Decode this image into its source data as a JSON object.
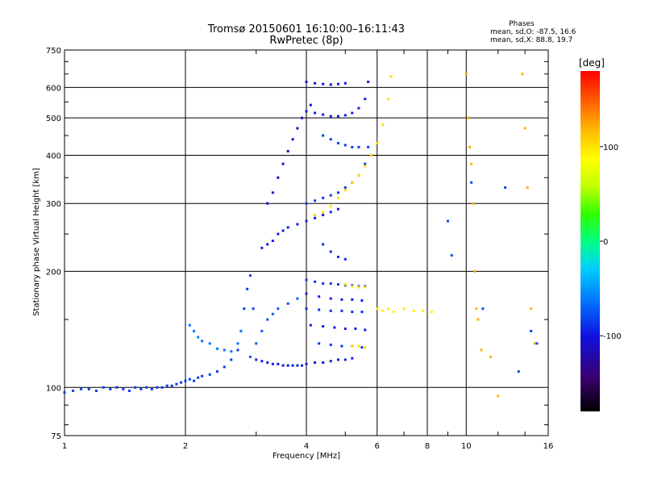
{
  "chart_data": {
    "type": "scatter",
    "title": "Tromsø 20150601 16:10:00–16:11:43",
    "subtitle": "RwPretec (8p)",
    "xlabel": "Frequency [MHz]",
    "ylabel": "Stationary phase Virtual Height [km]",
    "xscale": "log",
    "yscale": "log",
    "xlim": [
      1,
      16
    ],
    "ylim": [
      75,
      750
    ],
    "x_ticks": [
      "1",
      "2",
      "4",
      "6",
      "8",
      "10",
      "16"
    ],
    "y_ticks": [
      "75",
      "100",
      "200",
      "300",
      "400",
      "500",
      "600",
      "750"
    ],
    "grid": true,
    "phases_box": {
      "heading": "Phases",
      "line_o": "mean, sd,O: -87.5, 16.6",
      "line_x": "mean, sd,X:  88.8, 19.7"
    },
    "colorbar": {
      "label": "[deg]",
      "ticks": [
        "100",
        "0",
        "-100"
      ],
      "range": [
        -180,
        180
      ],
      "colors": [
        "#000000",
        "#3a0070",
        "#1010e0",
        "#0070ff",
        "#00d0ff",
        "#00ff80",
        "#30ff00",
        "#c0ff00",
        "#ffff00",
        "#ffc000",
        "#ff6000",
        "#ff0000"
      ]
    },
    "series": [
      {
        "points": [
          [
            1.0,
            97
          ],
          [
            1.05,
            98
          ],
          [
            1.1,
            99
          ],
          [
            1.15,
            99
          ],
          [
            1.2,
            98
          ],
          [
            1.25,
            100
          ],
          [
            1.3,
            99
          ],
          [
            1.35,
            100
          ],
          [
            1.4,
            99
          ],
          [
            1.45,
            98
          ],
          [
            1.5,
            100
          ],
          [
            1.55,
            99
          ],
          [
            1.6,
            100
          ],
          [
            1.65,
            99
          ],
          [
            1.7,
            100
          ],
          [
            1.75,
            100
          ],
          [
            1.8,
            101
          ],
          [
            1.85,
            101
          ],
          [
            1.9,
            102
          ],
          [
            1.95,
            103
          ],
          [
            2.0,
            104
          ],
          [
            2.05,
            105
          ],
          [
            2.1,
            104
          ],
          [
            2.15,
            106
          ],
          [
            2.2,
            107
          ],
          [
            2.3,
            108
          ],
          [
            2.4,
            110
          ],
          [
            2.5,
            113
          ],
          [
            2.6,
            118
          ],
          [
            2.7,
            125
          ],
          [
            2.8,
            160
          ],
          [
            2.85,
            180
          ],
          [
            2.9,
            195
          ],
          [
            2.95,
            160
          ]
        ],
        "phase": -100
      },
      {
        "points": [
          [
            2.05,
            145
          ],
          [
            2.1,
            140
          ],
          [
            2.15,
            135
          ],
          [
            2.2,
            132
          ],
          [
            2.3,
            130
          ],
          [
            2.4,
            126
          ],
          [
            2.5,
            125
          ],
          [
            2.6,
            124
          ],
          [
            2.7,
            130
          ],
          [
            2.75,
            140
          ]
        ],
        "phase": -80
      },
      {
        "points": [
          [
            3.0,
            118
          ],
          [
            3.1,
            117
          ],
          [
            3.2,
            116
          ],
          [
            3.3,
            115
          ],
          [
            3.4,
            115
          ],
          [
            3.5,
            114
          ],
          [
            3.6,
            114
          ],
          [
            3.7,
            114
          ],
          [
            3.8,
            114
          ],
          [
            3.9,
            114
          ],
          [
            4.0,
            115
          ],
          [
            4.2,
            116
          ],
          [
            4.4,
            116
          ],
          [
            4.6,
            117
          ],
          [
            4.8,
            118
          ],
          [
            5.0,
            118
          ],
          [
            5.2,
            119
          ]
        ],
        "phase": -110
      },
      {
        "points": [
          [
            2.9,
            120
          ],
          [
            3.0,
            130
          ],
          [
            3.1,
            140
          ],
          [
            3.2,
            150
          ],
          [
            3.3,
            155
          ],
          [
            3.4,
            160
          ],
          [
            3.6,
            165
          ],
          [
            3.8,
            170
          ]
        ],
        "phase": -90
      },
      {
        "points": [
          [
            4.0,
            190
          ],
          [
            4.2,
            188
          ],
          [
            4.4,
            186
          ],
          [
            4.6,
            186
          ],
          [
            4.8,
            185
          ],
          [
            5.0,
            184
          ],
          [
            5.2,
            184
          ],
          [
            5.4,
            183
          ],
          [
            5.6,
            183
          ]
        ],
        "phase": -100
      },
      {
        "points": [
          [
            4.0,
            175
          ],
          [
            4.3,
            172
          ],
          [
            4.6,
            170
          ],
          [
            4.9,
            169
          ],
          [
            5.2,
            169
          ],
          [
            5.5,
            168
          ]
        ],
        "phase": -110
      },
      {
        "points": [
          [
            4.0,
            160
          ],
          [
            4.3,
            159
          ],
          [
            4.6,
            158
          ],
          [
            4.9,
            158
          ],
          [
            5.2,
            157
          ],
          [
            5.5,
            157
          ]
        ],
        "phase": -105
      },
      {
        "points": [
          [
            4.1,
            145
          ],
          [
            4.4,
            144
          ],
          [
            4.7,
            143
          ],
          [
            5.0,
            142
          ],
          [
            5.3,
            142
          ],
          [
            5.6,
            141
          ]
        ],
        "phase": -110
      },
      {
        "points": [
          [
            4.3,
            130
          ],
          [
            4.6,
            129
          ],
          [
            4.9,
            128
          ],
          [
            5.2,
            128
          ],
          [
            5.5,
            127
          ]
        ],
        "phase": -100
      },
      {
        "points": [
          [
            5.0,
            185
          ],
          [
            5.2,
            183
          ],
          [
            5.4,
            182
          ],
          [
            5.6,
            182
          ]
        ],
        "phase": 100
      },
      {
        "points": [
          [
            5.2,
            128
          ],
          [
            5.4,
            128
          ],
          [
            5.6,
            127
          ]
        ],
        "phase": 100
      },
      {
        "points": [
          [
            6.0,
            160
          ],
          [
            6.2,
            158
          ],
          [
            6.4,
            160
          ],
          [
            6.6,
            157
          ],
          [
            7.0,
            160
          ],
          [
            7.4,
            158
          ],
          [
            7.8,
            158
          ],
          [
            8.2,
            157
          ]
        ],
        "phase": 90
      },
      {
        "points": [
          [
            3.1,
            230
          ],
          [
            3.2,
            235
          ],
          [
            3.3,
            240
          ],
          [
            3.4,
            250
          ],
          [
            3.5,
            255
          ],
          [
            3.6,
            260
          ],
          [
            3.8,
            265
          ],
          [
            4.0,
            270
          ],
          [
            4.2,
            275
          ],
          [
            4.4,
            280
          ],
          [
            4.6,
            285
          ],
          [
            4.8,
            290
          ]
        ],
        "phase": -110
      },
      {
        "points": [
          [
            3.2,
            300
          ],
          [
            3.3,
            320
          ],
          [
            3.4,
            350
          ],
          [
            3.5,
            380
          ],
          [
            3.6,
            410
          ],
          [
            3.7,
            440
          ],
          [
            3.8,
            470
          ],
          [
            3.9,
            500
          ],
          [
            4.0,
            520
          ],
          [
            4.1,
            540
          ]
        ],
        "phase": -120
      },
      {
        "points": [
          [
            4.0,
            300
          ],
          [
            4.2,
            305
          ],
          [
            4.4,
            310
          ],
          [
            4.6,
            315
          ],
          [
            4.8,
            320
          ],
          [
            5.0,
            330
          ],
          [
            5.2,
            340
          ],
          [
            5.4,
            355
          ],
          [
            5.6,
            380
          ],
          [
            5.7,
            420
          ]
        ],
        "phase": -100
      },
      {
        "points": [
          [
            4.0,
            520
          ],
          [
            4.2,
            515
          ],
          [
            4.4,
            510
          ],
          [
            4.6,
            505
          ],
          [
            4.8,
            505
          ],
          [
            5.0,
            508
          ],
          [
            5.2,
            515
          ],
          [
            5.4,
            530
          ],
          [
            5.6,
            560
          ],
          [
            5.7,
            620
          ]
        ],
        "phase": -110
      },
      {
        "points": [
          [
            4.0,
            620
          ],
          [
            4.2,
            615
          ],
          [
            4.4,
            612
          ],
          [
            4.6,
            610
          ],
          [
            4.8,
            612
          ],
          [
            5.0,
            615
          ]
        ],
        "phase": -115
      },
      {
        "points": [
          [
            4.2,
            280
          ],
          [
            4.4,
            285
          ],
          [
            4.6,
            295
          ],
          [
            4.8,
            310
          ],
          [
            5.0,
            325
          ],
          [
            5.2,
            340
          ],
          [
            5.4,
            355
          ],
          [
            5.6,
            375
          ],
          [
            5.8,
            400
          ],
          [
            6.0,
            430
          ],
          [
            6.2,
            480
          ],
          [
            6.4,
            560
          ],
          [
            6.5,
            640
          ]
        ],
        "phase": 100
      },
      {
        "points": [
          [
            4.4,
            450
          ],
          [
            4.6,
            440
          ],
          [
            4.8,
            430
          ],
          [
            5.0,
            425
          ],
          [
            5.2,
            420
          ],
          [
            5.4,
            420
          ]
        ],
        "phase": -100
      },
      {
        "points": [
          [
            4.4,
            235
          ],
          [
            4.6,
            225
          ],
          [
            4.8,
            218
          ],
          [
            5.0,
            215
          ]
        ],
        "phase": -105
      },
      {
        "points": [
          [
            10.0,
            650
          ],
          [
            10.1,
            500
          ],
          [
            10.2,
            420
          ],
          [
            10.3,
            380
          ],
          [
            10.4,
            300
          ],
          [
            10.5,
            200
          ],
          [
            10.6,
            160
          ],
          [
            10.7,
            150
          ],
          [
            10.9,
            125
          ],
          [
            11.5,
            120
          ],
          [
            12.0,
            95
          ],
          [
            13.8,
            650
          ],
          [
            14.0,
            470
          ],
          [
            14.2,
            330
          ],
          [
            14.5,
            160
          ],
          [
            14.8,
            130
          ]
        ],
        "phase": 120
      },
      {
        "points": [
          [
            9.0,
            270
          ],
          [
            9.2,
            220
          ],
          [
            10.3,
            340
          ],
          [
            11.0,
            160
          ],
          [
            12.5,
            330
          ],
          [
            13.5,
            110
          ],
          [
            14.5,
            140
          ],
          [
            15.0,
            130
          ]
        ],
        "phase": -95
      }
    ]
  }
}
